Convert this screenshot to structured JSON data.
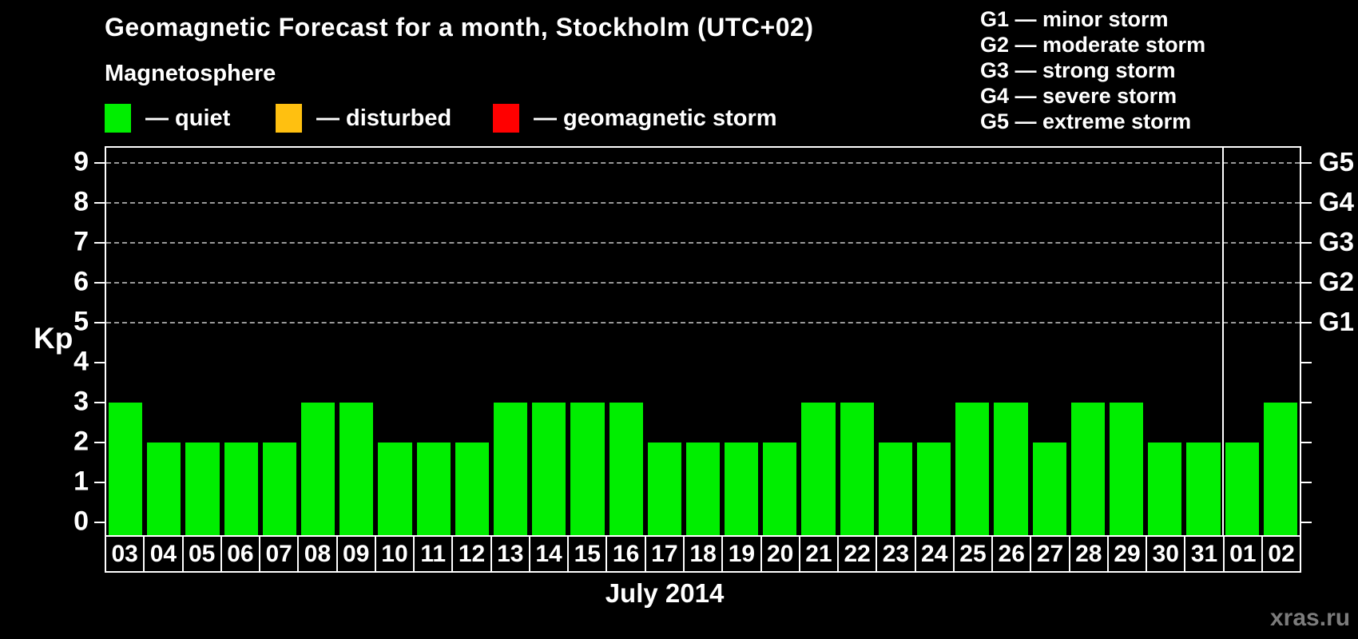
{
  "header": {
    "title": "Geomagnetic Forecast for a month, Stockholm (UTC+02)",
    "subtitle": "Magnetosphere"
  },
  "legend": {
    "items": [
      {
        "name": "quiet",
        "label": "— quiet",
        "color": "#00ee00"
      },
      {
        "name": "disturbed",
        "label": "— disturbed",
        "color": "#ffc010"
      },
      {
        "name": "geomagnetic-storm",
        "label": "— geomagnetic storm",
        "color": "#ff0000"
      }
    ]
  },
  "g_scale_legend": {
    "items": [
      "G1 — minor storm",
      "G2 — moderate storm",
      "G3 — strong storm",
      "G4 — severe storm",
      "G5 — extreme storm"
    ]
  },
  "chart_data": {
    "type": "bar",
    "title": "Geomagnetic Forecast for a month, Stockholm (UTC+02)",
    "ylabel": "Kp",
    "xlabel": "July 2014",
    "ylim": [
      0,
      9
    ],
    "categories": [
      "03",
      "04",
      "05",
      "06",
      "07",
      "08",
      "09",
      "10",
      "11",
      "12",
      "13",
      "14",
      "15",
      "16",
      "17",
      "18",
      "19",
      "20",
      "21",
      "22",
      "23",
      "24",
      "25",
      "26",
      "27",
      "28",
      "29",
      "30",
      "31",
      "01",
      "02"
    ],
    "values": [
      3,
      2,
      2,
      2,
      2,
      3,
      3,
      2,
      2,
      2,
      3,
      3,
      3,
      3,
      2,
      2,
      2,
      2,
      3,
      3,
      2,
      2,
      3,
      3,
      2,
      3,
      3,
      2,
      2,
      2,
      3
    ],
    "bar_color": "#00ee00",
    "grid": "horizontal dashed lines at storm levels only",
    "gridline_values": [
      5,
      6,
      7,
      8,
      9
    ],
    "left_ticks": [
      0,
      1,
      2,
      3,
      4,
      5,
      6,
      7,
      8,
      9
    ],
    "right_axis": [
      {
        "label": "G1",
        "value": 5
      },
      {
        "label": "G2",
        "value": 6
      },
      {
        "label": "G3",
        "value": 7
      },
      {
        "label": "G4",
        "value": 8
      },
      {
        "label": "G5",
        "value": 9
      }
    ],
    "month_separator_after": "31",
    "legend_position": "top-left",
    "colors_meaning": {
      "quiet": "#00ee00",
      "disturbed": "#ffc010",
      "storm": "#ff0000"
    }
  },
  "footer": {
    "month_label": "July 2014",
    "watermark": "xras.ru"
  }
}
